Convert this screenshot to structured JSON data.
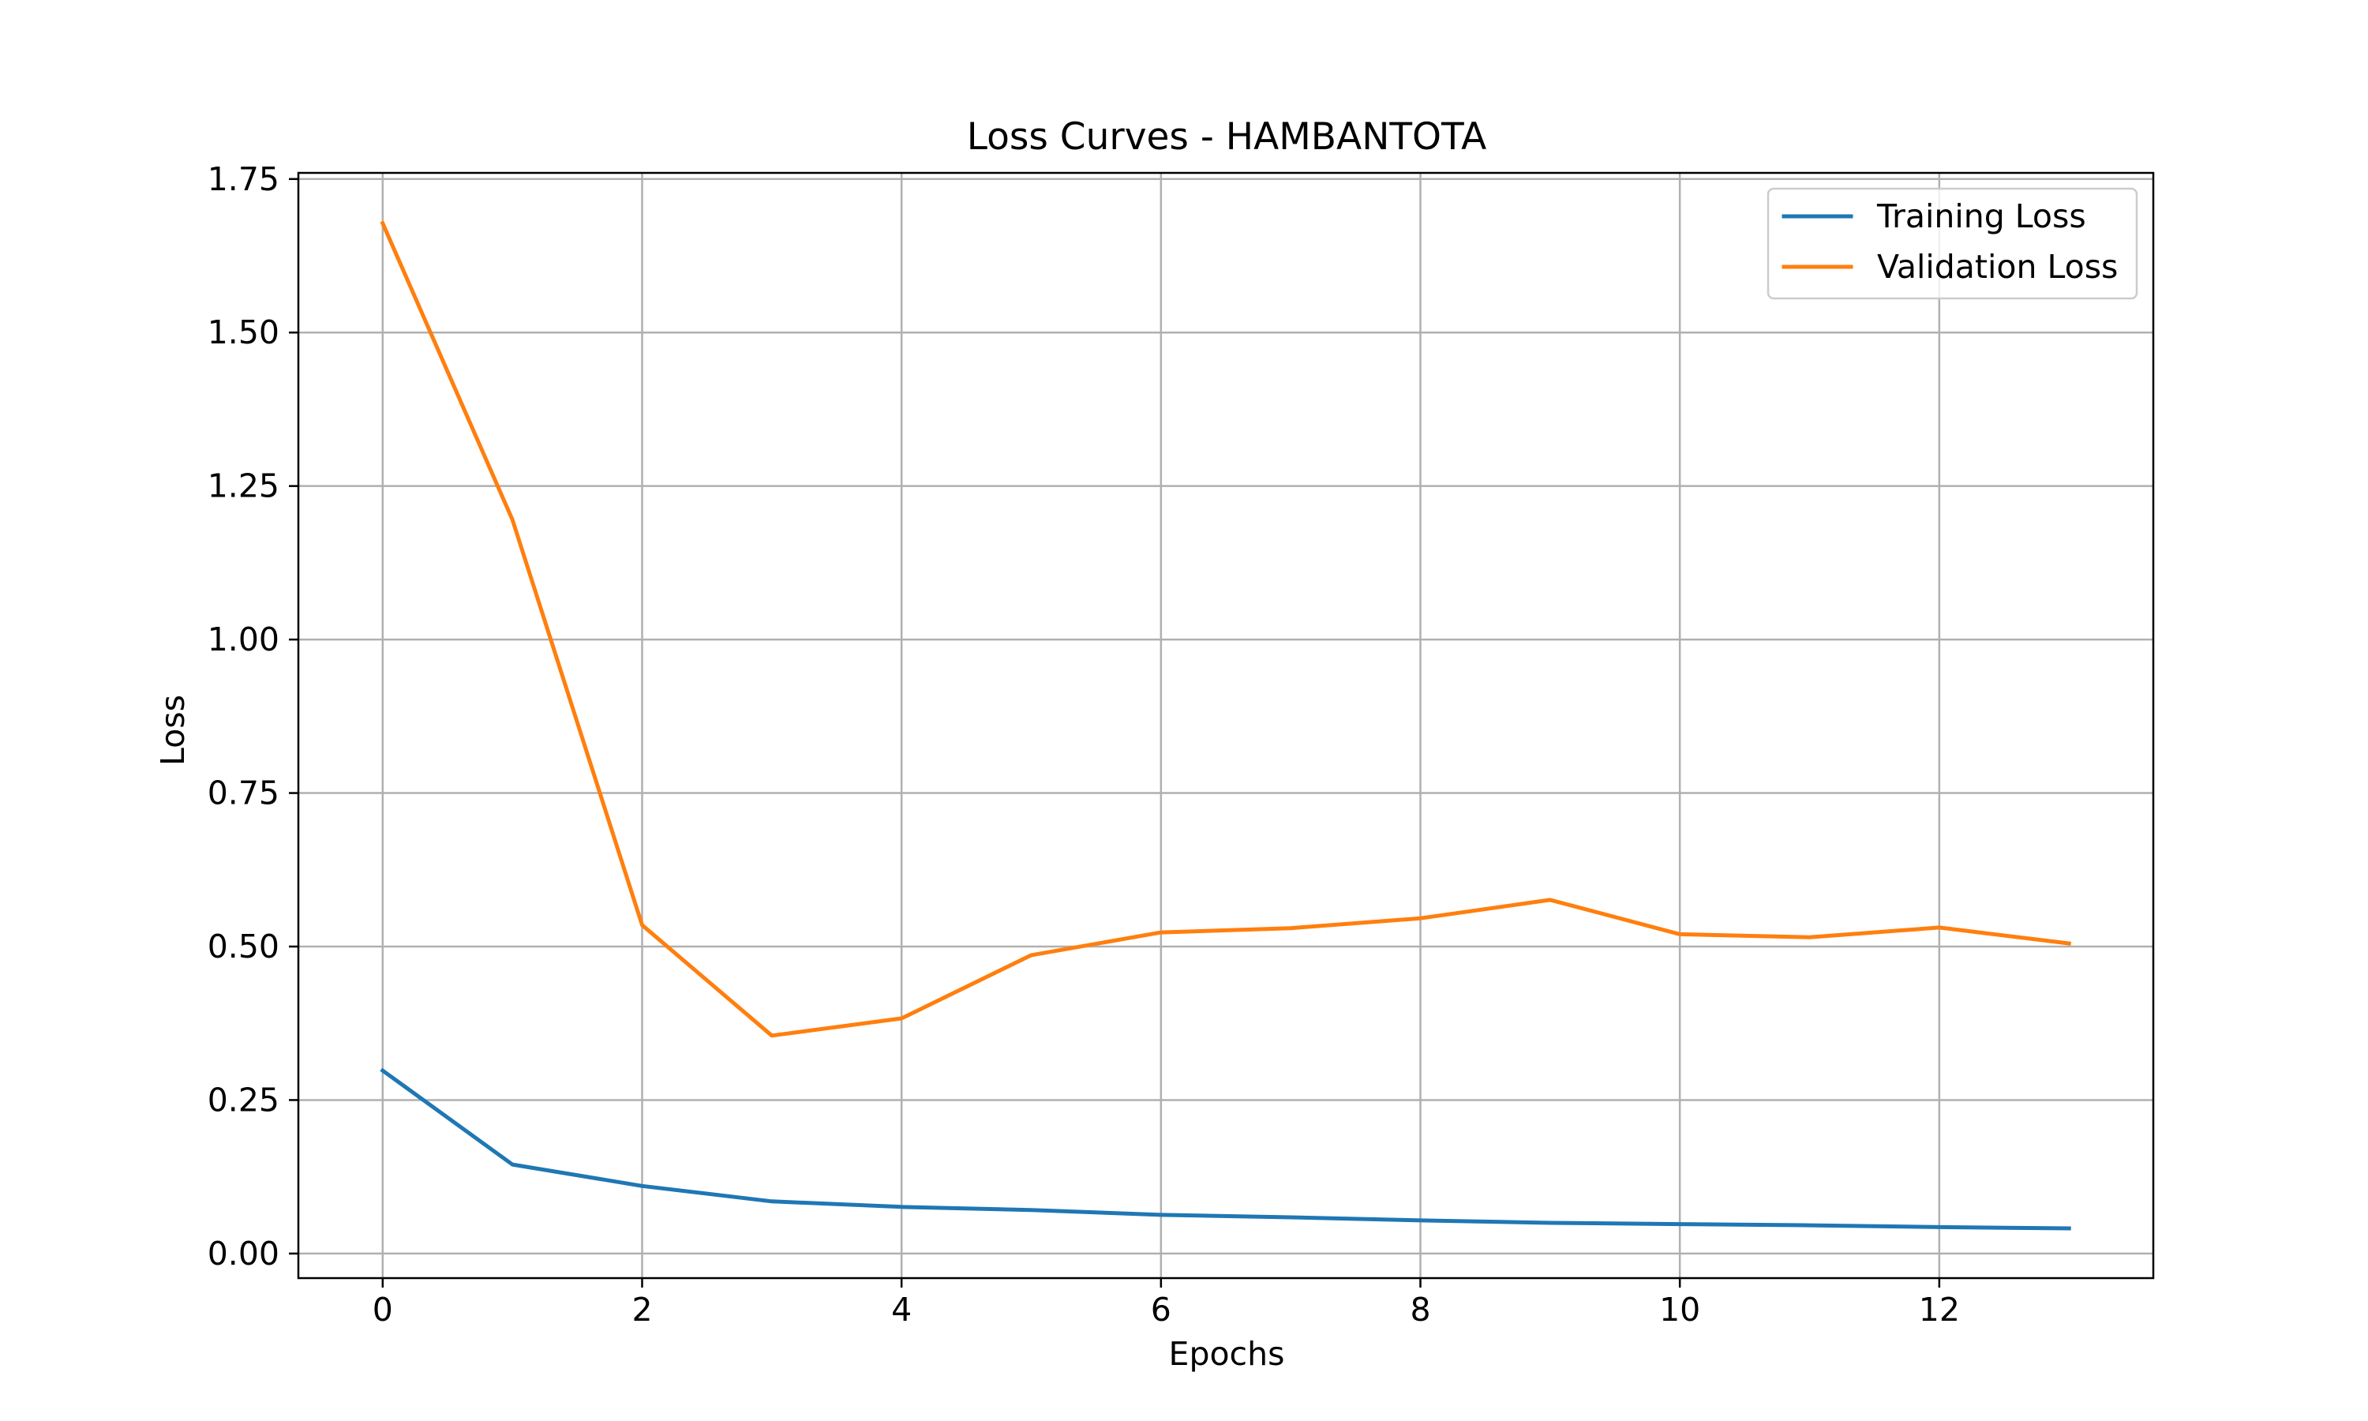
{
  "chart_data": {
    "type": "line",
    "title": "Loss Curves - HAMBANTOTA",
    "xlabel": "Epochs",
    "ylabel": "Loss",
    "xlim": [
      -0.65,
      13.65
    ],
    "ylim": [
      -0.04,
      1.76
    ],
    "x_ticks": [
      0,
      2,
      4,
      6,
      8,
      10,
      12
    ],
    "y_ticks": [
      0.0,
      0.25,
      0.5,
      0.75,
      1.0,
      1.25,
      1.5,
      1.75
    ],
    "x_tick_labels": [
      "0",
      "2",
      "4",
      "6",
      "8",
      "10",
      "12"
    ],
    "y_tick_labels": [
      "0.00",
      "0.25",
      "0.50",
      "0.75",
      "1.00",
      "1.25",
      "1.50",
      "1.75"
    ],
    "grid": true,
    "legend_position": "top-right",
    "x": [
      0,
      1,
      2,
      3,
      4,
      5,
      6,
      7,
      8,
      9,
      10,
      11,
      12,
      13
    ],
    "series": [
      {
        "name": "Training Loss",
        "color": "#1f77b4",
        "values": [
          0.298,
          0.145,
          0.11,
          0.085,
          0.076,
          0.071,
          0.063,
          0.059,
          0.054,
          0.05,
          0.048,
          0.046,
          0.043,
          0.041
        ]
      },
      {
        "name": "Validation Loss",
        "color": "#ff7f0e",
        "values": [
          1.678,
          1.195,
          0.535,
          0.355,
          0.383,
          0.486,
          0.523,
          0.53,
          0.546,
          0.576,
          0.52,
          0.515,
          0.531,
          0.505
        ]
      }
    ]
  }
}
